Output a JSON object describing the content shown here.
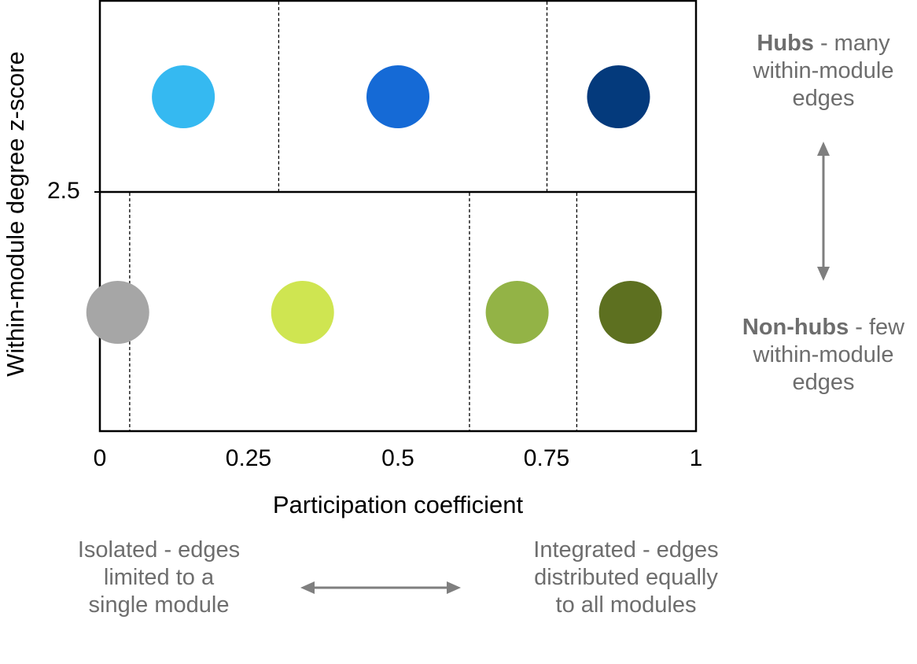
{
  "y_axis": {
    "label": "Within-module degree z-score",
    "tick": "2.5"
  },
  "x_axis": {
    "label": "Participation coefficient",
    "ticks": [
      "0",
      "0.25",
      "0.5",
      "0.75",
      "1"
    ]
  },
  "right_notes": {
    "top_bold": "Hubs",
    "top_rest": " - many within-module edges",
    "bottom_bold": "Non-hubs",
    "bottom_rest": " - few within-module edges"
  },
  "bottom_notes": {
    "left": "Isolated - edges limited to a single module",
    "right": "Integrated - edges distributed equally to all modules"
  },
  "regions": {
    "hub_boundaries": [
      0.3,
      0.75
    ],
    "nonhub_boundaries": [
      0.05,
      0.62,
      0.8
    ],
    "hub_points": [
      {
        "x": 0.14,
        "color": "#35b9f1"
      },
      {
        "x": 0.5,
        "color": "#156ad6"
      },
      {
        "x": 0.87,
        "color": "#043a7c"
      }
    ],
    "nonhub_points": [
      {
        "x": 0.03,
        "color": "#a6a6a6"
      },
      {
        "x": 0.34,
        "color": "#cfe551"
      },
      {
        "x": 0.7,
        "color": "#93b346"
      },
      {
        "x": 0.89,
        "color": "#5d7020"
      }
    ]
  },
  "colors": {
    "arrow": "#7f7f7f",
    "note_text": "#6d6d6d"
  }
}
